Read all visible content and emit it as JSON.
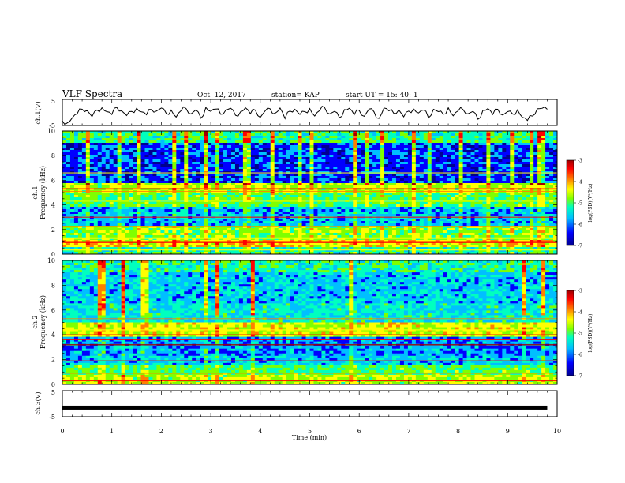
{
  "header": {
    "title": "VLF Spectra",
    "date": "Oct. 12, 2017",
    "station": "station= KAP",
    "start": "start  UT =   15: 40: 1"
  },
  "colors": {
    "ink": "#000000",
    "colormap": [
      "#00008f",
      "#0000ff",
      "#00bfff",
      "#00ffbf",
      "#7fff00",
      "#ffff00",
      "#ff7f00",
      "#ff0000",
      "#9f0000"
    ],
    "ch3_trace": "#000000"
  },
  "chart_data": [
    {
      "panel": "ch1-waveform",
      "type": "line",
      "ylabel": "ch.1(V)",
      "xlim": [
        0,
        10
      ],
      "ylim": [
        -5,
        5
      ],
      "x_ticks": [
        0,
        1,
        2,
        3,
        4,
        5,
        6,
        7,
        8,
        9,
        10
      ],
      "y_tick_labels": [
        "5",
        "-5"
      ],
      "series": [
        {
          "x": [
            0.0,
            0.1,
            0.2,
            0.3,
            0.4,
            0.5,
            0.6,
            0.7,
            0.8,
            0.9,
            1.0,
            1.1,
            1.2,
            1.3,
            1.4,
            1.5,
            1.6,
            1.7,
            1.8,
            1.9,
            2.0,
            2.1,
            2.2,
            2.3,
            2.4,
            2.5,
            2.6,
            2.7,
            2.8,
            2.9,
            3.0,
            3.1,
            3.2,
            3.3,
            3.4,
            3.5,
            3.6,
            3.7,
            3.8,
            3.9,
            4.0,
            4.1,
            4.2,
            4.3,
            4.4,
            4.5,
            4.6,
            4.7,
            4.8,
            4.9,
            5.0,
            5.1,
            5.2,
            5.3,
            5.4,
            5.5,
            5.6,
            5.7,
            5.8,
            5.9,
            6.0,
            6.1,
            6.2,
            6.3,
            6.4,
            6.5,
            6.6,
            6.7,
            6.8,
            6.9,
            7.0,
            7.1,
            7.2,
            7.3,
            7.4,
            7.5,
            7.6,
            7.7,
            7.8,
            7.9,
            8.0,
            8.1,
            8.2,
            8.3,
            8.4,
            8.5,
            8.6,
            8.7,
            8.8,
            8.9,
            9.0,
            9.1,
            9.2,
            9.3,
            9.4,
            9.5,
            9.6,
            9.7,
            9.8
          ],
          "y": [
            -3.2,
            -4.0,
            -2.1,
            -0.5,
            1.2,
            0.8,
            -1.6,
            0.9,
            1.8,
            0.3,
            -0.8,
            1.9,
            0.6,
            -1.2,
            0.4,
            1.6,
            0.2,
            -0.9,
            1.1,
            0.5,
            1.7,
            -0.4,
            0.9,
            -1.8,
            0.7,
            1.5,
            -0.6,
            1.0,
            -2.2,
            1.9,
            0.4,
            1.3,
            -0.7,
            0.8,
            1.6,
            -1.1,
            0.2,
            1.8,
            -0.5,
            0.9,
            -1.9,
            0.6,
            1.4,
            -0.3,
            1.7,
            -2.4,
            0.5,
            1.2,
            -0.8,
            0.3,
            1.5,
            -1.4,
            0.7,
            1.9,
            -0.6,
            0.4,
            -2.0,
            1.1,
            1.6,
            -0.9,
            0.8,
            -1.5,
            1.3,
            0.2,
            -2.3,
            1.7,
            0.6,
            -0.4,
            1.0,
            -1.7,
            0.5,
            1.4,
            -0.2,
            0.9,
            -2.1,
            1.2,
            0.3,
            -0.7,
            1.8,
            -1.3,
            0.6,
            1.1,
            -0.5,
            0.4,
            -2.6,
            0.8,
            1.5,
            -0.8,
            1.2,
            -1.0,
            0.3,
            -0.6,
            1.0,
            -1.9,
            -3.1,
            -1.4,
            1.4,
            1.6,
            1.2
          ]
        }
      ]
    },
    {
      "panel": "ch1-spectrogram",
      "type": "heatmap",
      "ylabel_1": "ch.1",
      "ylabel_2": "Frequency (kHz)",
      "xlim": [
        0,
        10
      ],
      "ylim": [
        0,
        10
      ],
      "y_ticks": [
        0,
        2,
        4,
        6,
        8,
        10
      ],
      "x_ticks": [
        0,
        1,
        2,
        3,
        4,
        5,
        6,
        7,
        8,
        9,
        10
      ],
      "colorbar": {
        "range": [
          -7,
          -3
        ],
        "ticks": [
          "-3",
          "-4",
          "-5",
          "-6",
          "-7"
        ],
        "label": "log(PSD)(V²/Hz)"
      }
    },
    {
      "panel": "ch2-spectrogram",
      "type": "heatmap",
      "ylabel_1": "ch.2",
      "ylabel_2": "Frequency (kHz)",
      "xlim": [
        0,
        10
      ],
      "ylim": [
        0,
        10
      ],
      "y_ticks": [
        0,
        2,
        4,
        6,
        8,
        10
      ],
      "x_ticks": [
        0,
        1,
        2,
        3,
        4,
        5,
        6,
        7,
        8,
        9,
        10
      ],
      "colorbar": {
        "range": [
          -7,
          -3
        ],
        "ticks": [
          "-3",
          "-4",
          "-5",
          "-6",
          "-7"
        ],
        "label": "log(PSD)(V²/Hz)"
      }
    },
    {
      "panel": "ch3-waveform",
      "type": "line",
      "ylabel": "ch.3(V)",
      "xlabel": "Time (min)",
      "xlim": [
        0,
        10
      ],
      "ylim": [
        -5,
        5
      ],
      "x_ticks": [
        0,
        1,
        2,
        3,
        4,
        5,
        6,
        7,
        8,
        9,
        10
      ],
      "x_tick_labels": [
        "0",
        "1",
        "2",
        "3",
        "4",
        "5",
        "6",
        "7",
        "8",
        "9",
        "10"
      ],
      "y_tick_labels": [
        "5",
        "-5"
      ],
      "series": [
        {
          "x": [
            0,
            9.8
          ],
          "y": [
            -1.5,
            -1.5
          ]
        }
      ]
    }
  ]
}
